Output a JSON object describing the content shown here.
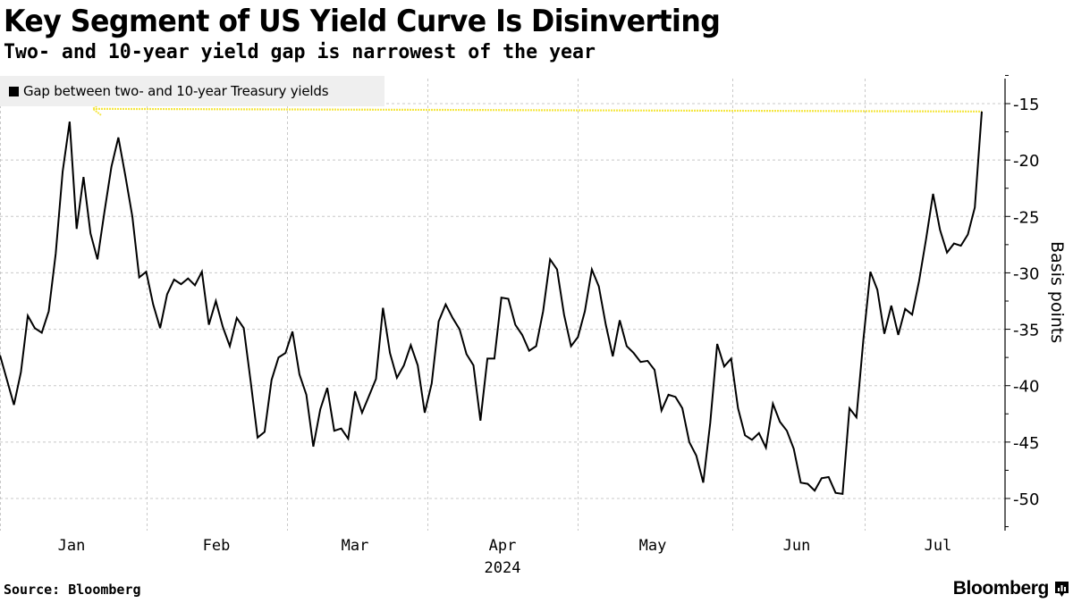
{
  "header": {
    "title": "Key Segment of US Yield Curve Is Disinverting",
    "subtitle": "Two- and 10-year yield gap is narrowest of the year"
  },
  "footer": {
    "source": "Source: Bloomberg",
    "brand": "Bloomberg",
    "brand_icon": "bloomberg-chart-icon"
  },
  "colors": {
    "line": "#000000",
    "annotation": "#f5e642",
    "grid": "#c8c8c8",
    "legend_bg": "#efefef"
  },
  "chart_data": {
    "type": "line",
    "title": "Key Segment of US Yield Curve Is Disinverting",
    "subtitle": "Two- and 10-year yield gap is narrowest of the year",
    "xlabel": "2024",
    "ylabel": "Basis points",
    "y_axis_side": "right",
    "ylim": [
      -53,
      -12
    ],
    "yticks": [
      -15,
      -20,
      -25,
      -30,
      -35,
      -40,
      -45,
      -50
    ],
    "ytick_labels": [
      "-15",
      "-20",
      "-25",
      "-30",
      "-35",
      "-40",
      "-45",
      "-50"
    ],
    "xticks": [
      "Jan",
      "Feb",
      "Mar",
      "Apr",
      "May",
      "Jun",
      "Jul"
    ],
    "xtick_year": "2024",
    "grid": true,
    "legend": {
      "placement": "top-left",
      "entries": [
        "Gap between two- and 10-year Treasury yields"
      ]
    },
    "annotation": {
      "type": "dotted-arrow",
      "value": -15.7,
      "description": "latest value equals narrowest level of year, arrow pointing left to January peak"
    },
    "series": [
      {
        "name": "Gap between two- and 10-year Treasury yields",
        "values": [
          -37.3,
          -39.5,
          -41.7,
          -38.8,
          -33.8,
          -34.9,
          -35.3,
          -33.4,
          -28.3,
          -21.0,
          -16.6,
          -26.1,
          -21.5,
          -26.5,
          -28.8,
          -24.6,
          -20.6,
          -18.0,
          -21.4,
          -25.0,
          -30.4,
          -29.9,
          -32.8,
          -34.9,
          -31.9,
          -30.6,
          -31.0,
          -30.5,
          -31.1,
          -29.9,
          -34.6,
          -32.5,
          -34.8,
          -36.5,
          -34.0,
          -34.9,
          -39.6,
          -44.6,
          -44.1,
          -39.5,
          -37.5,
          -37.1,
          -35.2,
          -39.0,
          -40.8,
          -45.4,
          -42.1,
          -40.2,
          -44.0,
          -43.8,
          -44.7,
          -40.5,
          -42.4,
          -40.9,
          -39.4,
          -33.1,
          -37.1,
          -39.3,
          -38.2,
          -36.4,
          -38.2,
          -42.4,
          -39.8,
          -34.3,
          -32.8,
          -34.0,
          -35.0,
          -37.2,
          -38.2,
          -43.1,
          -37.6,
          -37.6,
          -32.2,
          -32.3,
          -34.6,
          -35.5,
          -36.9,
          -36.5,
          -33.4,
          -28.8,
          -29.7,
          -33.7,
          -36.5,
          -35.7,
          -33.4,
          -29.7,
          -31.2,
          -34.6,
          -37.4,
          -34.2,
          -36.5,
          -37.1,
          -37.9,
          -37.8,
          -38.6,
          -42.2,
          -40.8,
          -41.0,
          -42.0,
          -45.0,
          -46.2,
          -48.6,
          -43.3,
          -36.3,
          -38.3,
          -37.6,
          -42.0,
          -44.4,
          -44.8,
          -44.2,
          -45.5,
          -41.6,
          -43.2,
          -44.0,
          -45.6,
          -48.6,
          -48.7,
          -49.3,
          -48.2,
          -48.1,
          -49.5,
          -49.6,
          -42.0,
          -42.8,
          -35.9,
          -29.9,
          -31.5,
          -35.4,
          -32.9,
          -35.5,
          -33.2,
          -33.7,
          -30.7,
          -27.0,
          -23.0,
          -26.2,
          -28.2,
          -27.4,
          -27.6,
          -26.6,
          -24.2,
          -15.7
        ]
      }
    ]
  }
}
